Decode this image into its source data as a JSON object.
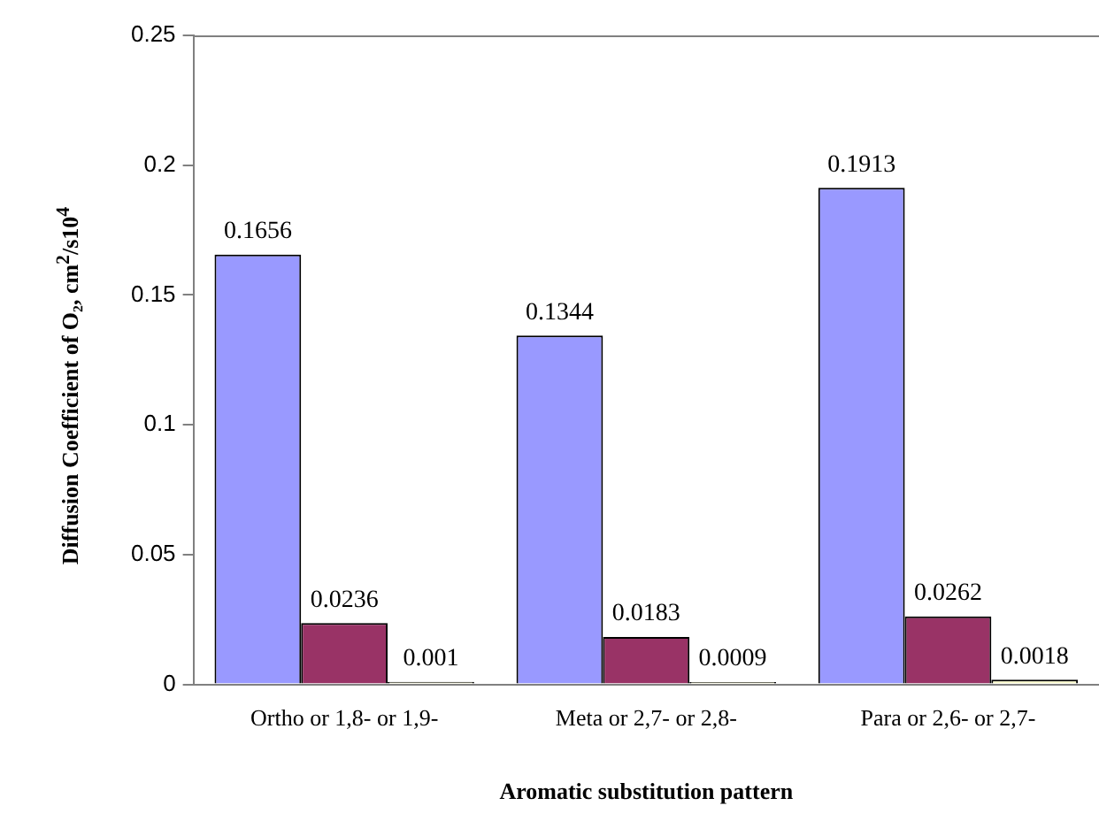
{
  "chart_data": {
    "type": "bar",
    "xlabel": "Aromatic substitution pattern",
    "ylabel": "Diffusion Coefficient of O₂, cm$^{2}$/s10$^{4}$",
    "categories": [
      "Ortho or 1,8- or 1,9-",
      "Meta or 2,7- or 2,8-",
      "Para or 2,6- or 2,7-"
    ],
    "series": [
      {
        "color": "#9999ff",
        "values": [
          0.1656,
          0.1344,
          0.1913
        ]
      },
      {
        "color": "#993366",
        "values": [
          0.0236,
          0.0183,
          0.0262
        ]
      },
      {
        "color": "#ffffcc",
        "values": [
          0.001,
          0.0009,
          0.0018
        ]
      }
    ],
    "ylim": [
      0,
      0.25
    ],
    "yticks": [
      0,
      0.05,
      0.1,
      0.15,
      0.2,
      0.25
    ],
    "grid": false,
    "legend": false,
    "data_labels": true
  }
}
